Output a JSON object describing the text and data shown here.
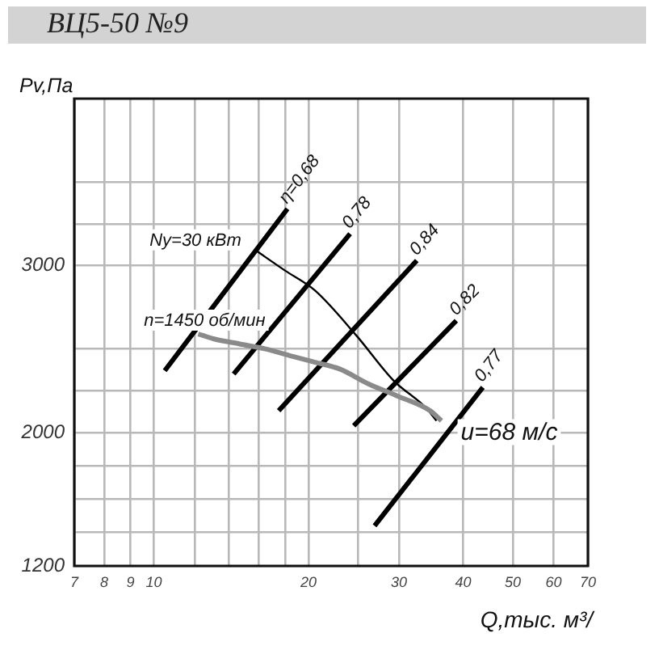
{
  "chart_data": {
    "type": "line",
    "title": "ВЦ5-50 №9",
    "xlabel": "Q,тыс. м³/",
    "ylabel": "Pv,Па",
    "log": "x",
    "grid": true,
    "xlim": [
      7,
      70
    ],
    "xticks": [
      7,
      8,
      9,
      10,
      {
        "value": 12,
        "label": null
      },
      {
        "value": 14,
        "label": null
      },
      {
        "value": 16,
        "label": null
      },
      {
        "value": 18,
        "label": null
      },
      20,
      {
        "value": 25,
        "label": null
      },
      30,
      40,
      50,
      60,
      70
    ],
    "ylim": [
      1200,
      4000
    ],
    "yticks": [
      1200,
      {
        "value": 1400,
        "label": null
      },
      {
        "value": 1600,
        "label": null
      },
      {
        "value": 1800,
        "label": null
      },
      2000,
      {
        "value": 2250,
        "label": null
      },
      {
        "value": 2500,
        "label": null
      },
      3000,
      {
        "value": 3250,
        "label": null
      },
      {
        "value": 3500,
        "label": null
      }
    ],
    "series": [
      {
        "name": "n=1450 об/мин",
        "color": "#8a8a8a",
        "x": [
          12.2,
          13.1,
          14.7,
          16.5,
          18.9,
          20.6,
          23,
          26.2,
          29.7,
          34.5,
          36.3
        ],
        "values": [
          2590,
          2560,
          2530,
          2500,
          2450,
          2420,
          2380,
          2290,
          2220,
          2130,
          2070
        ]
      },
      {
        "name": "Ny=30 кВт",
        "color": "#000000",
        "x": [
          15.8,
          18,
          20.6,
          24.8,
          29.3,
          33.8,
          35.5
        ],
        "values": [
          3090,
          2970,
          2850,
          2580,
          2310,
          2150,
          2070
        ]
      },
      {
        "name": "η=0,68",
        "color": "#000000",
        "x": [
          10.5,
          18.2
        ],
        "values": [
          2370,
          3340
        ]
      },
      {
        "name": "0,78",
        "color": "#000000",
        "x": [
          14.3,
          24.1
        ],
        "values": [
          2350,
          3190
        ]
      },
      {
        "name": "0,84",
        "color": "#000000",
        "x": [
          17.5,
          32.5
        ],
        "values": [
          2130,
          3030
        ]
      },
      {
        "name": "0,82",
        "color": "#000000",
        "x": [
          24.5,
          38.8
        ],
        "values": [
          2040,
          2670
        ]
      },
      {
        "name": "0,77",
        "color": "#000000",
        "x": [
          26.9,
          43.7
        ],
        "values": [
          1440,
          2270
        ]
      }
    ],
    "annotations": [
      {
        "text": "u=68 м/с",
        "x": 36.3,
        "y": 2070
      }
    ]
  }
}
